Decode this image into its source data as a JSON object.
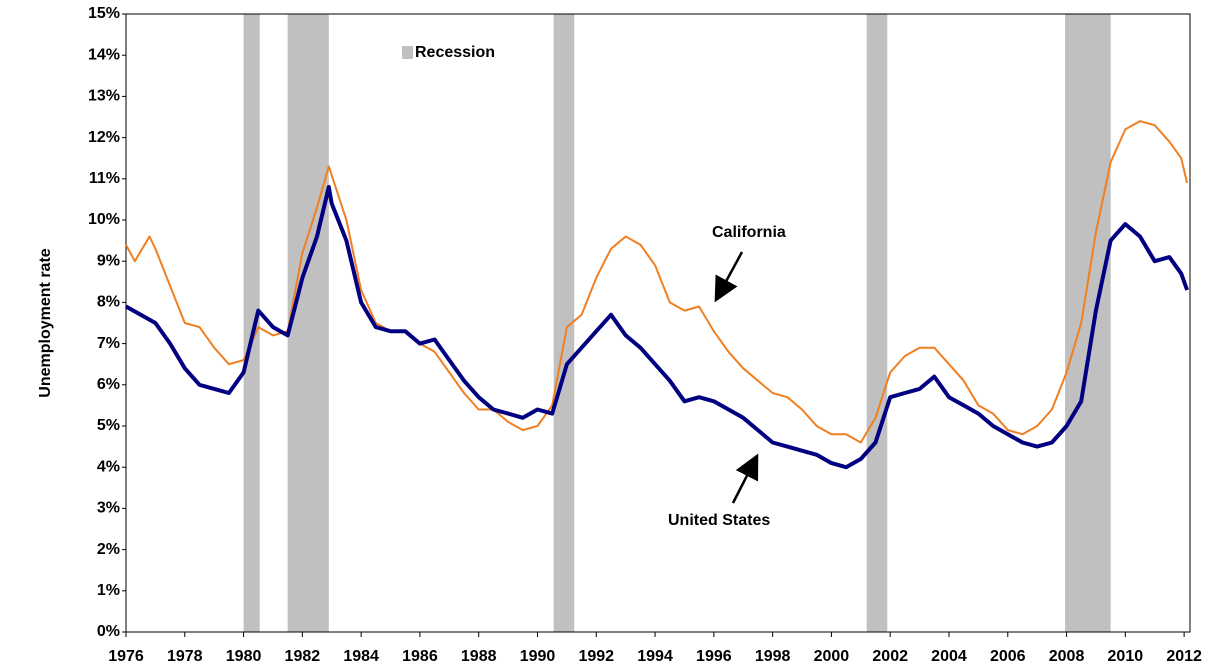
{
  "chart_data": {
    "type": "line",
    "y_axis_label": "Unemployment rate",
    "xlim": [
      1976,
      2012.2
    ],
    "ylim": [
      0,
      15
    ],
    "xticks": [
      1976,
      1978,
      1980,
      1982,
      1984,
      1986,
      1988,
      1990,
      1992,
      1994,
      1996,
      1998,
      2000,
      2002,
      2004,
      2006,
      2008,
      2010,
      2012
    ],
    "yticks": [
      {
        "value": 0,
        "label": "0%"
      },
      {
        "value": 1,
        "label": "1%"
      },
      {
        "value": 2,
        "label": "2%"
      },
      {
        "value": 3,
        "label": "3%"
      },
      {
        "value": 4,
        "label": "4%"
      },
      {
        "value": 5,
        "label": "5%"
      },
      {
        "value": 6,
        "label": "6%"
      },
      {
        "value": 7,
        "label": "7%"
      },
      {
        "value": 8,
        "label": "8%"
      },
      {
        "value": 9,
        "label": "9%"
      },
      {
        "value": 10,
        "label": "10%"
      },
      {
        "value": 11,
        "label": "11%"
      },
      {
        "value": 12,
        "label": "12%"
      },
      {
        "value": 13,
        "label": "13%"
      },
      {
        "value": 14,
        "label": "14%"
      },
      {
        "value": 15,
        "label": "15%"
      }
    ],
    "recession_legend": "Recession",
    "recession_color": "#c0c0c0",
    "recessions": [
      {
        "start": 1980.0,
        "end": 1980.55
      },
      {
        "start": 1981.5,
        "end": 1982.9
      },
      {
        "start": 1990.55,
        "end": 1991.25
      },
      {
        "start": 2001.2,
        "end": 2001.9
      },
      {
        "start": 2007.95,
        "end": 2009.5
      }
    ],
    "series": [
      {
        "name": "United States",
        "color": "#000080",
        "width": 4,
        "x": [
          1976.0,
          1976.5,
          1977.0,
          1977.5,
          1978.0,
          1978.5,
          1979.0,
          1979.5,
          1980.0,
          1980.4,
          1980.5,
          1981.0,
          1981.5,
          1982.0,
          1982.5,
          1982.9,
          1983.0,
          1983.5,
          1984.0,
          1984.5,
          1985.0,
          1985.5,
          1986.0,
          1986.5,
          1987.0,
          1987.5,
          1988.0,
          1988.5,
          1989.0,
          1989.5,
          1990.0,
          1990.5,
          1991.0,
          1991.5,
          1992.0,
          1992.5,
          1993.0,
          1993.5,
          1994.0,
          1994.5,
          1995.0,
          1995.5,
          1996.0,
          1996.5,
          1997.0,
          1997.5,
          1998.0,
          1998.5,
          1999.0,
          1999.5,
          2000.0,
          2000.5,
          2001.0,
          2001.5,
          2002.0,
          2002.5,
          2003.0,
          2003.5,
          2004.0,
          2004.5,
          2005.0,
          2005.5,
          2006.0,
          2006.5,
          2007.0,
          2007.5,
          2008.0,
          2008.5,
          2009.0,
          2009.5,
          2010.0,
          2010.5,
          2011.0,
          2011.5,
          2011.9,
          2012.1
        ],
        "values": [
          7.9,
          7.7,
          7.5,
          7.0,
          6.4,
          6.0,
          5.9,
          5.8,
          6.3,
          7.5,
          7.8,
          7.4,
          7.2,
          8.6,
          9.6,
          10.8,
          10.4,
          9.5,
          8.0,
          7.4,
          7.3,
          7.3,
          7.0,
          7.1,
          6.6,
          6.1,
          5.7,
          5.4,
          5.3,
          5.2,
          5.4,
          5.3,
          6.5,
          6.9,
          7.3,
          7.7,
          7.2,
          6.9,
          6.5,
          6.1,
          5.6,
          5.7,
          5.6,
          5.4,
          5.2,
          4.9,
          4.6,
          4.5,
          4.4,
          4.3,
          4.1,
          4.0,
          4.2,
          4.6,
          5.7,
          5.8,
          5.9,
          6.2,
          5.7,
          5.5,
          5.3,
          5.0,
          4.8,
          4.6,
          4.5,
          4.6,
          5.0,
          5.6,
          7.8,
          9.5,
          9.9,
          9.6,
          9.0,
          9.1,
          8.7,
          8.3
        ]
      },
      {
        "name": "California",
        "color": "#f07f1f",
        "width": 2,
        "x": [
          1976.0,
          1976.3,
          1976.8,
          1977.0,
          1977.5,
          1978.0,
          1978.5,
          1979.0,
          1979.5,
          1980.0,
          1980.5,
          1981.0,
          1981.5,
          1982.0,
          1982.5,
          1982.9,
          1983.5,
          1984.0,
          1984.5,
          1985.0,
          1985.5,
          1986.0,
          1986.5,
          1987.0,
          1987.5,
          1988.0,
          1988.5,
          1989.0,
          1989.5,
          1990.0,
          1990.5,
          1991.0,
          1991.5,
          1992.0,
          1992.5,
          1993.0,
          1993.5,
          1994.0,
          1994.5,
          1995.0,
          1995.5,
          1996.0,
          1996.5,
          1997.0,
          1997.5,
          1998.0,
          1998.5,
          1999.0,
          1999.5,
          2000.0,
          2000.5,
          2001.0,
          2001.5,
          2002.0,
          2002.5,
          2003.0,
          2003.5,
          2004.0,
          2004.5,
          2005.0,
          2005.5,
          2006.0,
          2006.5,
          2007.0,
          2007.5,
          2008.0,
          2008.5,
          2009.0,
          2009.5,
          2010.0,
          2010.5,
          2011.0,
          2011.5,
          2011.9,
          2012.1
        ],
        "values": [
          9.4,
          9.0,
          9.6,
          9.3,
          8.4,
          7.5,
          7.4,
          6.9,
          6.5,
          6.6,
          7.4,
          7.2,
          7.3,
          9.2,
          10.3,
          11.3,
          10.0,
          8.3,
          7.5,
          7.3,
          7.3,
          7.0,
          6.8,
          6.3,
          5.8,
          5.4,
          5.4,
          5.1,
          4.9,
          5.0,
          5.5,
          7.4,
          7.7,
          8.6,
          9.3,
          9.6,
          9.4,
          8.9,
          8.0,
          7.8,
          7.9,
          7.3,
          6.8,
          6.4,
          6.1,
          5.8,
          5.7,
          5.4,
          5.0,
          4.8,
          4.8,
          4.6,
          5.2,
          6.3,
          6.7,
          6.9,
          6.9,
          6.5,
          6.1,
          5.5,
          5.3,
          4.9,
          4.8,
          5.0,
          5.4,
          6.3,
          7.5,
          9.7,
          11.4,
          12.2,
          12.4,
          12.3,
          11.9,
          11.5,
          10.9
        ]
      }
    ],
    "annotations": [
      {
        "text": "California"
      },
      {
        "text": "United States"
      }
    ]
  }
}
